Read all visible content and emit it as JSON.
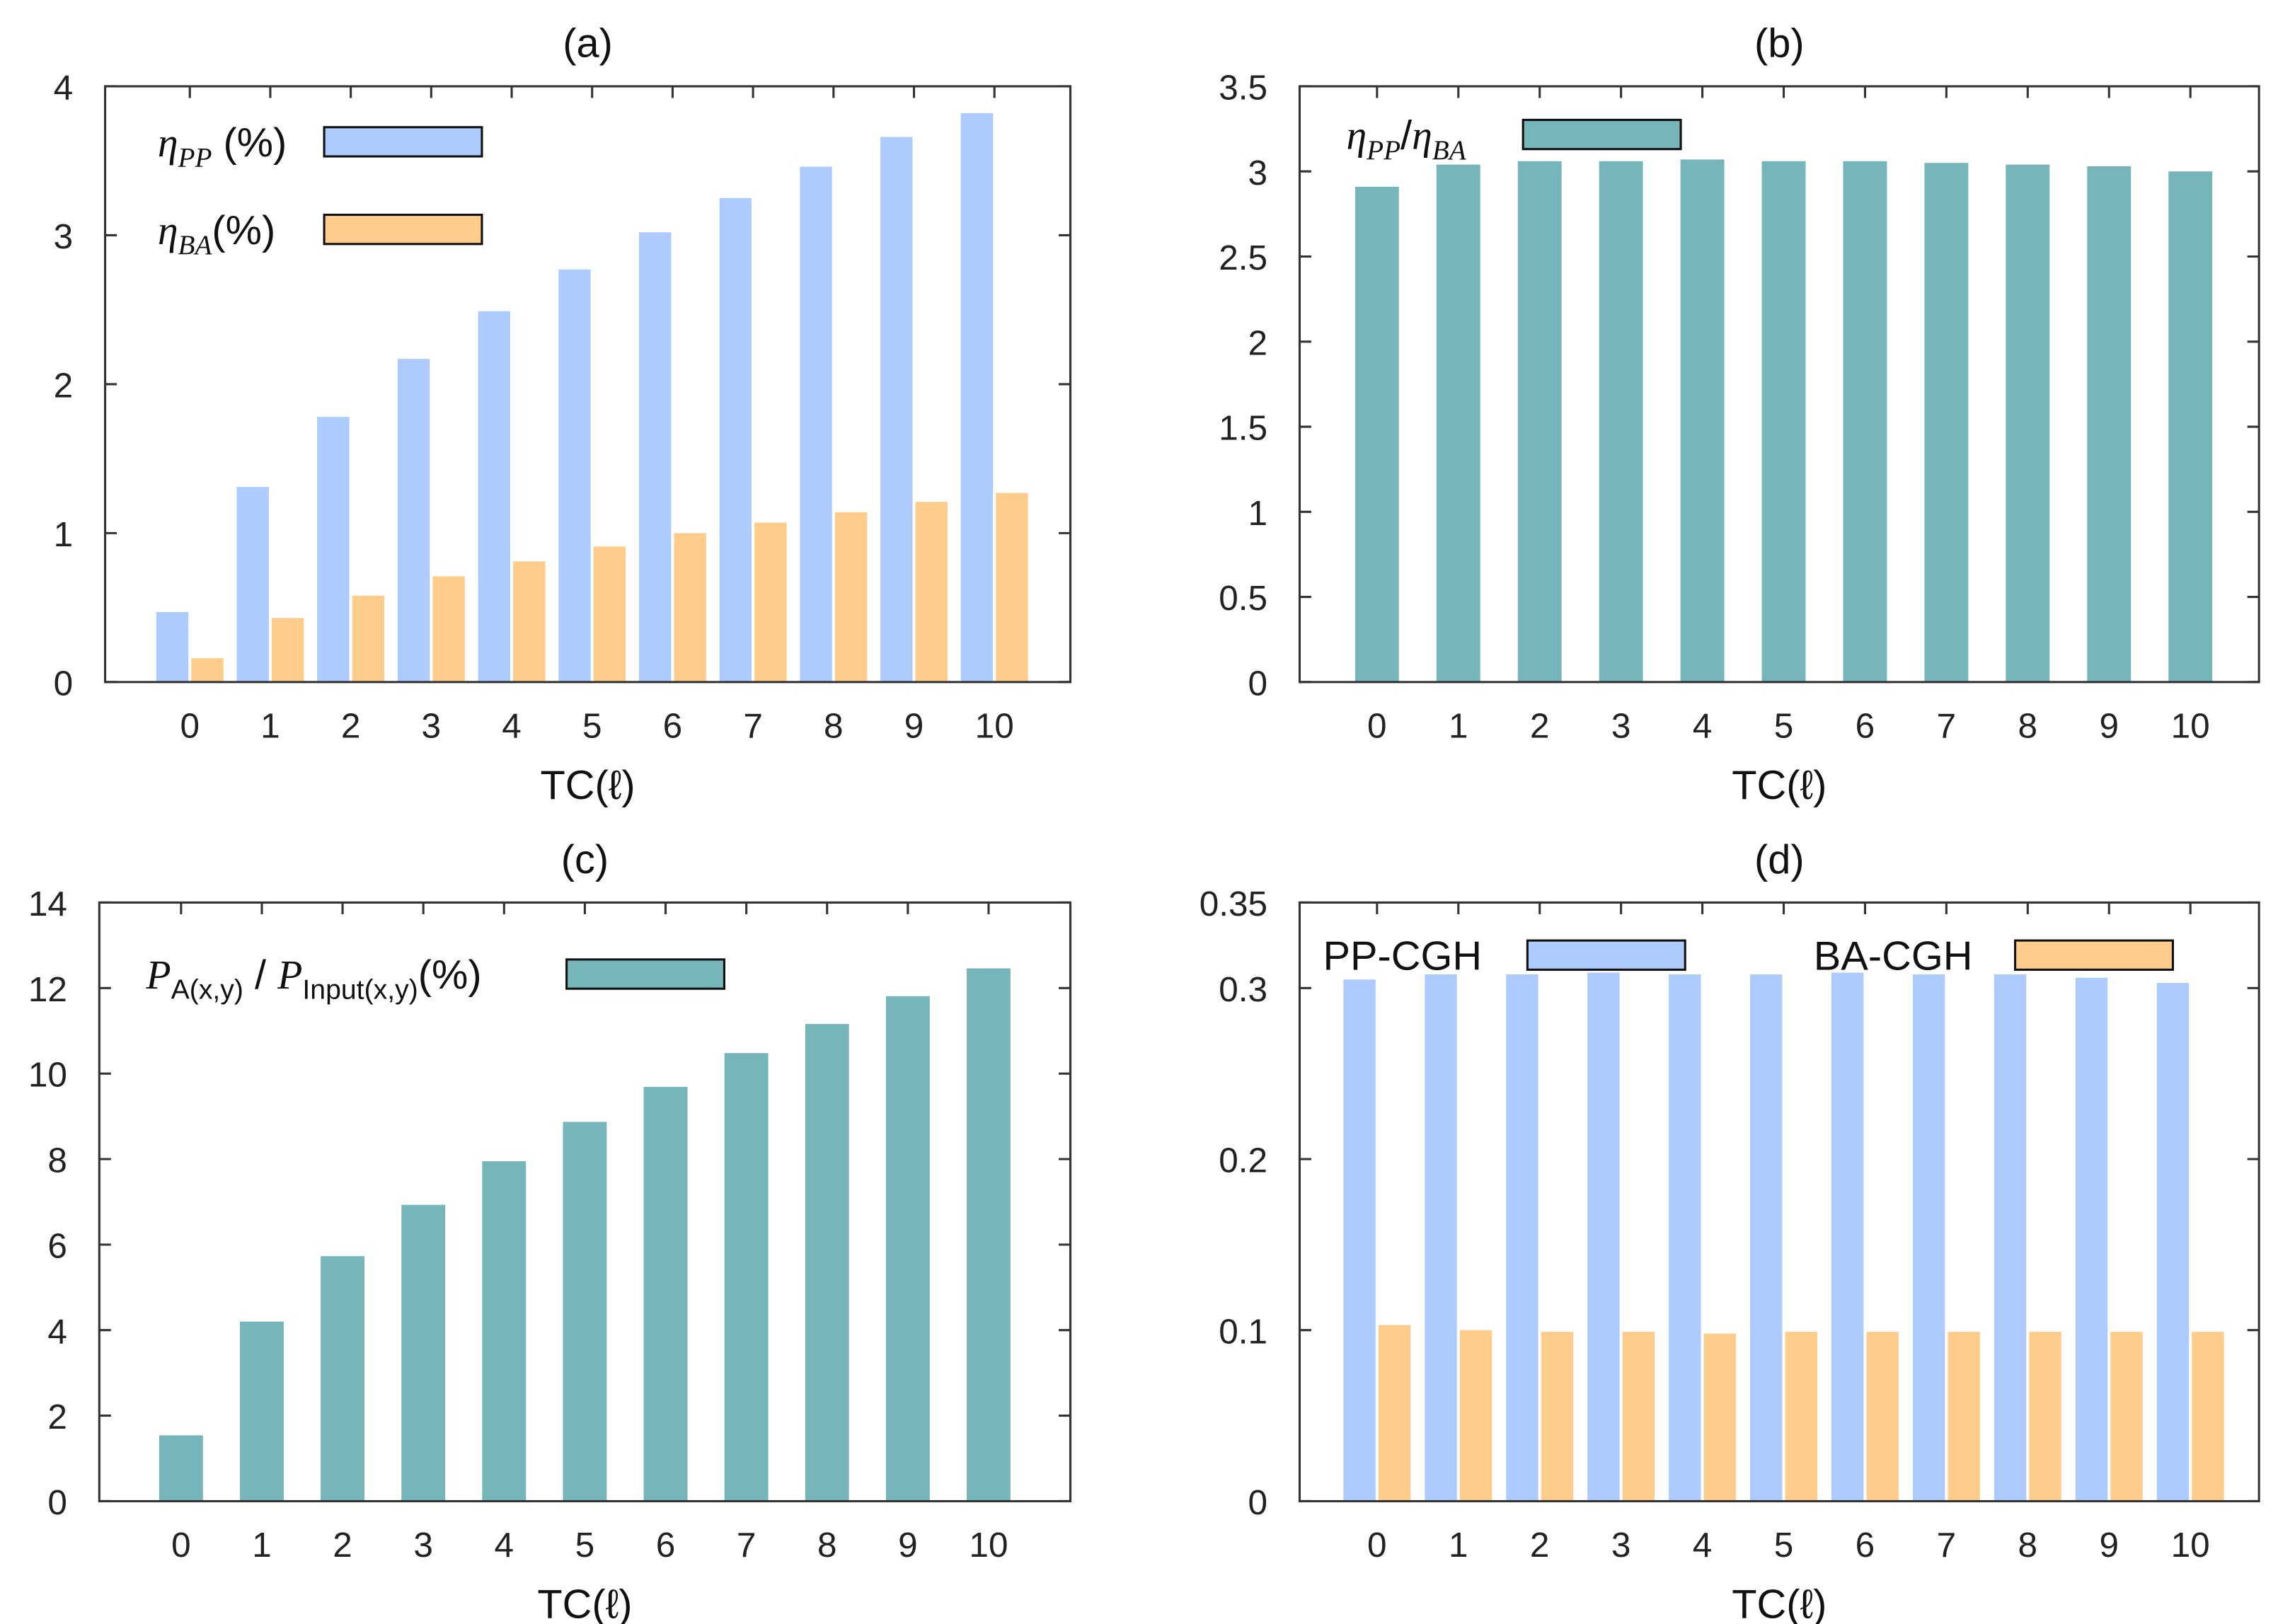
{
  "colors": {
    "blue": "#adcbfd",
    "orange": "#fecd8c",
    "teal": "#76b6bb",
    "axis": "#333333"
  },
  "chart_data": [
    {
      "id": "a",
      "type": "bar",
      "title": "(a)",
      "xlabel": "TC(ℓ)",
      "ylabel": "",
      "categories": [
        "0",
        "1",
        "2",
        "3",
        "4",
        "5",
        "6",
        "7",
        "8",
        "9",
        "10"
      ],
      "ylim": [
        0,
        4
      ],
      "yticks": [
        "0",
        "1",
        "2",
        "3",
        "4"
      ],
      "ytick_values": [
        0,
        1,
        2,
        3,
        4
      ],
      "legend_position": "top-left",
      "series": [
        {
          "name": "η_PP (%)",
          "label_main": "η",
          "label_sub": "PP",
          "label_rest": " (%)",
          "color": "blue",
          "values": [
            0.47,
            1.31,
            1.78,
            2.17,
            2.49,
            2.77,
            3.02,
            3.25,
            3.46,
            3.66,
            3.82
          ]
        },
        {
          "name": "η_BA (%)",
          "label_main": "η",
          "label_sub": "BA",
          "label_rest": "(%)",
          "color": "orange",
          "values": [
            0.16,
            0.43,
            0.58,
            0.71,
            0.81,
            0.91,
            1.0,
            1.07,
            1.14,
            1.21,
            1.27
          ]
        }
      ]
    },
    {
      "id": "b",
      "type": "bar",
      "title": "(b)",
      "xlabel": "TC(ℓ)",
      "ylabel": "",
      "categories": [
        "0",
        "1",
        "2",
        "3",
        "4",
        "5",
        "6",
        "7",
        "8",
        "9",
        "10"
      ],
      "ylim": [
        0,
        3.5
      ],
      "yticks": [
        "0",
        "0.5",
        "1",
        "1.5",
        "2",
        "2.5",
        "3",
        "3.5"
      ],
      "ytick_values": [
        0,
        0.5,
        1,
        1.5,
        2,
        2.5,
        3,
        3.5
      ],
      "legend_position": "top-left",
      "series": [
        {
          "name": "η_PP/η_BA",
          "label_main": "η",
          "label_sub": "PP",
          "label_rest": "/",
          "label_main2": "η",
          "label_sub2": "BA",
          "color": "teal",
          "values": [
            2.91,
            3.04,
            3.06,
            3.06,
            3.07,
            3.06,
            3.06,
            3.05,
            3.04,
            3.03,
            3.0
          ]
        }
      ]
    },
    {
      "id": "c",
      "type": "bar",
      "title": "(c)",
      "xlabel": "TC(ℓ)",
      "ylabel": "",
      "categories": [
        "0",
        "1",
        "2",
        "3",
        "4",
        "5",
        "6",
        "7",
        "8",
        "9",
        "10"
      ],
      "ylim": [
        0,
        14
      ],
      "yticks": [
        "0",
        "2",
        "4",
        "6",
        "8",
        "10",
        "12",
        "14"
      ],
      "ytick_values": [
        0,
        2,
        4,
        6,
        8,
        10,
        12,
        14
      ],
      "legend_position": "top-left",
      "series": [
        {
          "name": "P_A(x,y) / P_Input(x,y)(%)",
          "label_main": "P",
          "label_sub": "A(x,y)",
          "label_rest": " / ",
          "label_main2": "P",
          "label_sub2": "Input(x,y)",
          "label_tail": "(%)",
          "color": "teal",
          "values": [
            1.54,
            4.2,
            5.73,
            6.93,
            7.95,
            8.87,
            9.69,
            10.48,
            11.16,
            11.81,
            12.46
          ]
        }
      ]
    },
    {
      "id": "d",
      "type": "bar",
      "title": "(d)",
      "xlabel": "TC(ℓ)",
      "ylabel": "",
      "categories": [
        "0",
        "1",
        "2",
        "3",
        "4",
        "5",
        "6",
        "7",
        "8",
        "9",
        "10"
      ],
      "ylim": [
        0,
        0.35
      ],
      "yticks": [
        "0",
        "0.1",
        "0.2",
        "0.3",
        "0.35"
      ],
      "ytick_values": [
        0,
        0.1,
        0.2,
        0.3,
        0.35
      ],
      "legend_position": "top",
      "series": [
        {
          "name": "PP-CGH",
          "label_main": "PP-CGH",
          "color": "blue",
          "values": [
            0.305,
            0.308,
            0.308,
            0.309,
            0.308,
            0.308,
            0.309,
            0.308,
            0.308,
            0.306,
            0.303
          ]
        },
        {
          "name": "BA-CGH",
          "label_main": "BA-CGH",
          "color": "orange",
          "values": [
            0.103,
            0.1,
            0.099,
            0.099,
            0.098,
            0.099,
            0.099,
            0.099,
            0.099,
            0.099,
            0.099
          ]
        }
      ]
    }
  ]
}
